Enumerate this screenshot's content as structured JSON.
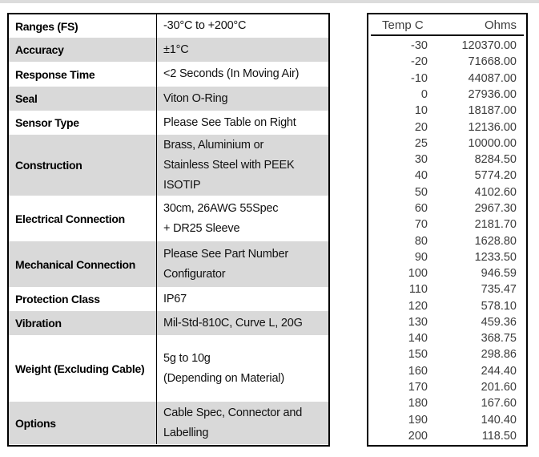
{
  "page": {
    "top_rule_color": "#dcdcdc",
    "shade_color": "#d9d9d9"
  },
  "spec_table": {
    "rows": [
      {
        "label": "Ranges (FS)",
        "value": "-30°C to +200°C"
      },
      {
        "label": "Accuracy",
        "value": "±1°C"
      },
      {
        "label": "Response Time",
        "value": "<2 Seconds (In Moving Air)"
      },
      {
        "label": "Seal",
        "value": "Viton O-Ring"
      },
      {
        "label": "Sensor Type",
        "value": "Please See Table on Right"
      },
      {
        "label": "Construction",
        "value": "Brass, Aluminium or\nStainless Steel with PEEK\nISOTIP"
      },
      {
        "label": "Electrical Connection",
        "value": "30cm, 26AWG 55Spec\n+ DR25 Sleeve"
      },
      {
        "label": "Mechanical Connection",
        "value": "Please See Part Number\nConfigurator"
      },
      {
        "label": "Protection Class",
        "value": "IP67"
      },
      {
        "label": "Vibration",
        "value": "Mil-Std-810C, Curve L, 20G"
      },
      {
        "label": "Weight (Excluding Cable)",
        "value": "5g to 10g\n(Depending on Material)"
      },
      {
        "label": "Options",
        "value": "Cable Spec, Connector and\nLabelling"
      }
    ]
  },
  "resistance_table": {
    "headers": {
      "temp": "Temp C",
      "ohms": "Ohms"
    },
    "rows": [
      {
        "t": "-30",
        "o": "120370.00"
      },
      {
        "t": "-20",
        "o": "71668.00"
      },
      {
        "t": "-10",
        "o": "44087.00"
      },
      {
        "t": "0",
        "o": "27936.00"
      },
      {
        "t": "10",
        "o": "18187.00"
      },
      {
        "t": "20",
        "o": "12136.00"
      },
      {
        "t": "25",
        "o": "10000.00"
      },
      {
        "t": "30",
        "o": "8284.50"
      },
      {
        "t": "40",
        "o": "5774.20"
      },
      {
        "t": "50",
        "o": "4102.60"
      },
      {
        "t": "60",
        "o": "2967.30"
      },
      {
        "t": "70",
        "o": "2181.70"
      },
      {
        "t": "80",
        "o": "1628.80"
      },
      {
        "t": "90",
        "o": "1233.50"
      },
      {
        "t": "100",
        "o": "946.59"
      },
      {
        "t": "110",
        "o": "735.47"
      },
      {
        "t": "120",
        "o": "578.10"
      },
      {
        "t": "130",
        "o": "459.36"
      },
      {
        "t": "140",
        "o": "368.75"
      },
      {
        "t": "150",
        "o": "298.86"
      },
      {
        "t": "160",
        "o": "244.40"
      },
      {
        "t": "170",
        "o": "201.60"
      },
      {
        "t": "180",
        "o": "167.60"
      },
      {
        "t": "190",
        "o": "140.40"
      },
      {
        "t": "200",
        "o": "118.50"
      }
    ]
  }
}
